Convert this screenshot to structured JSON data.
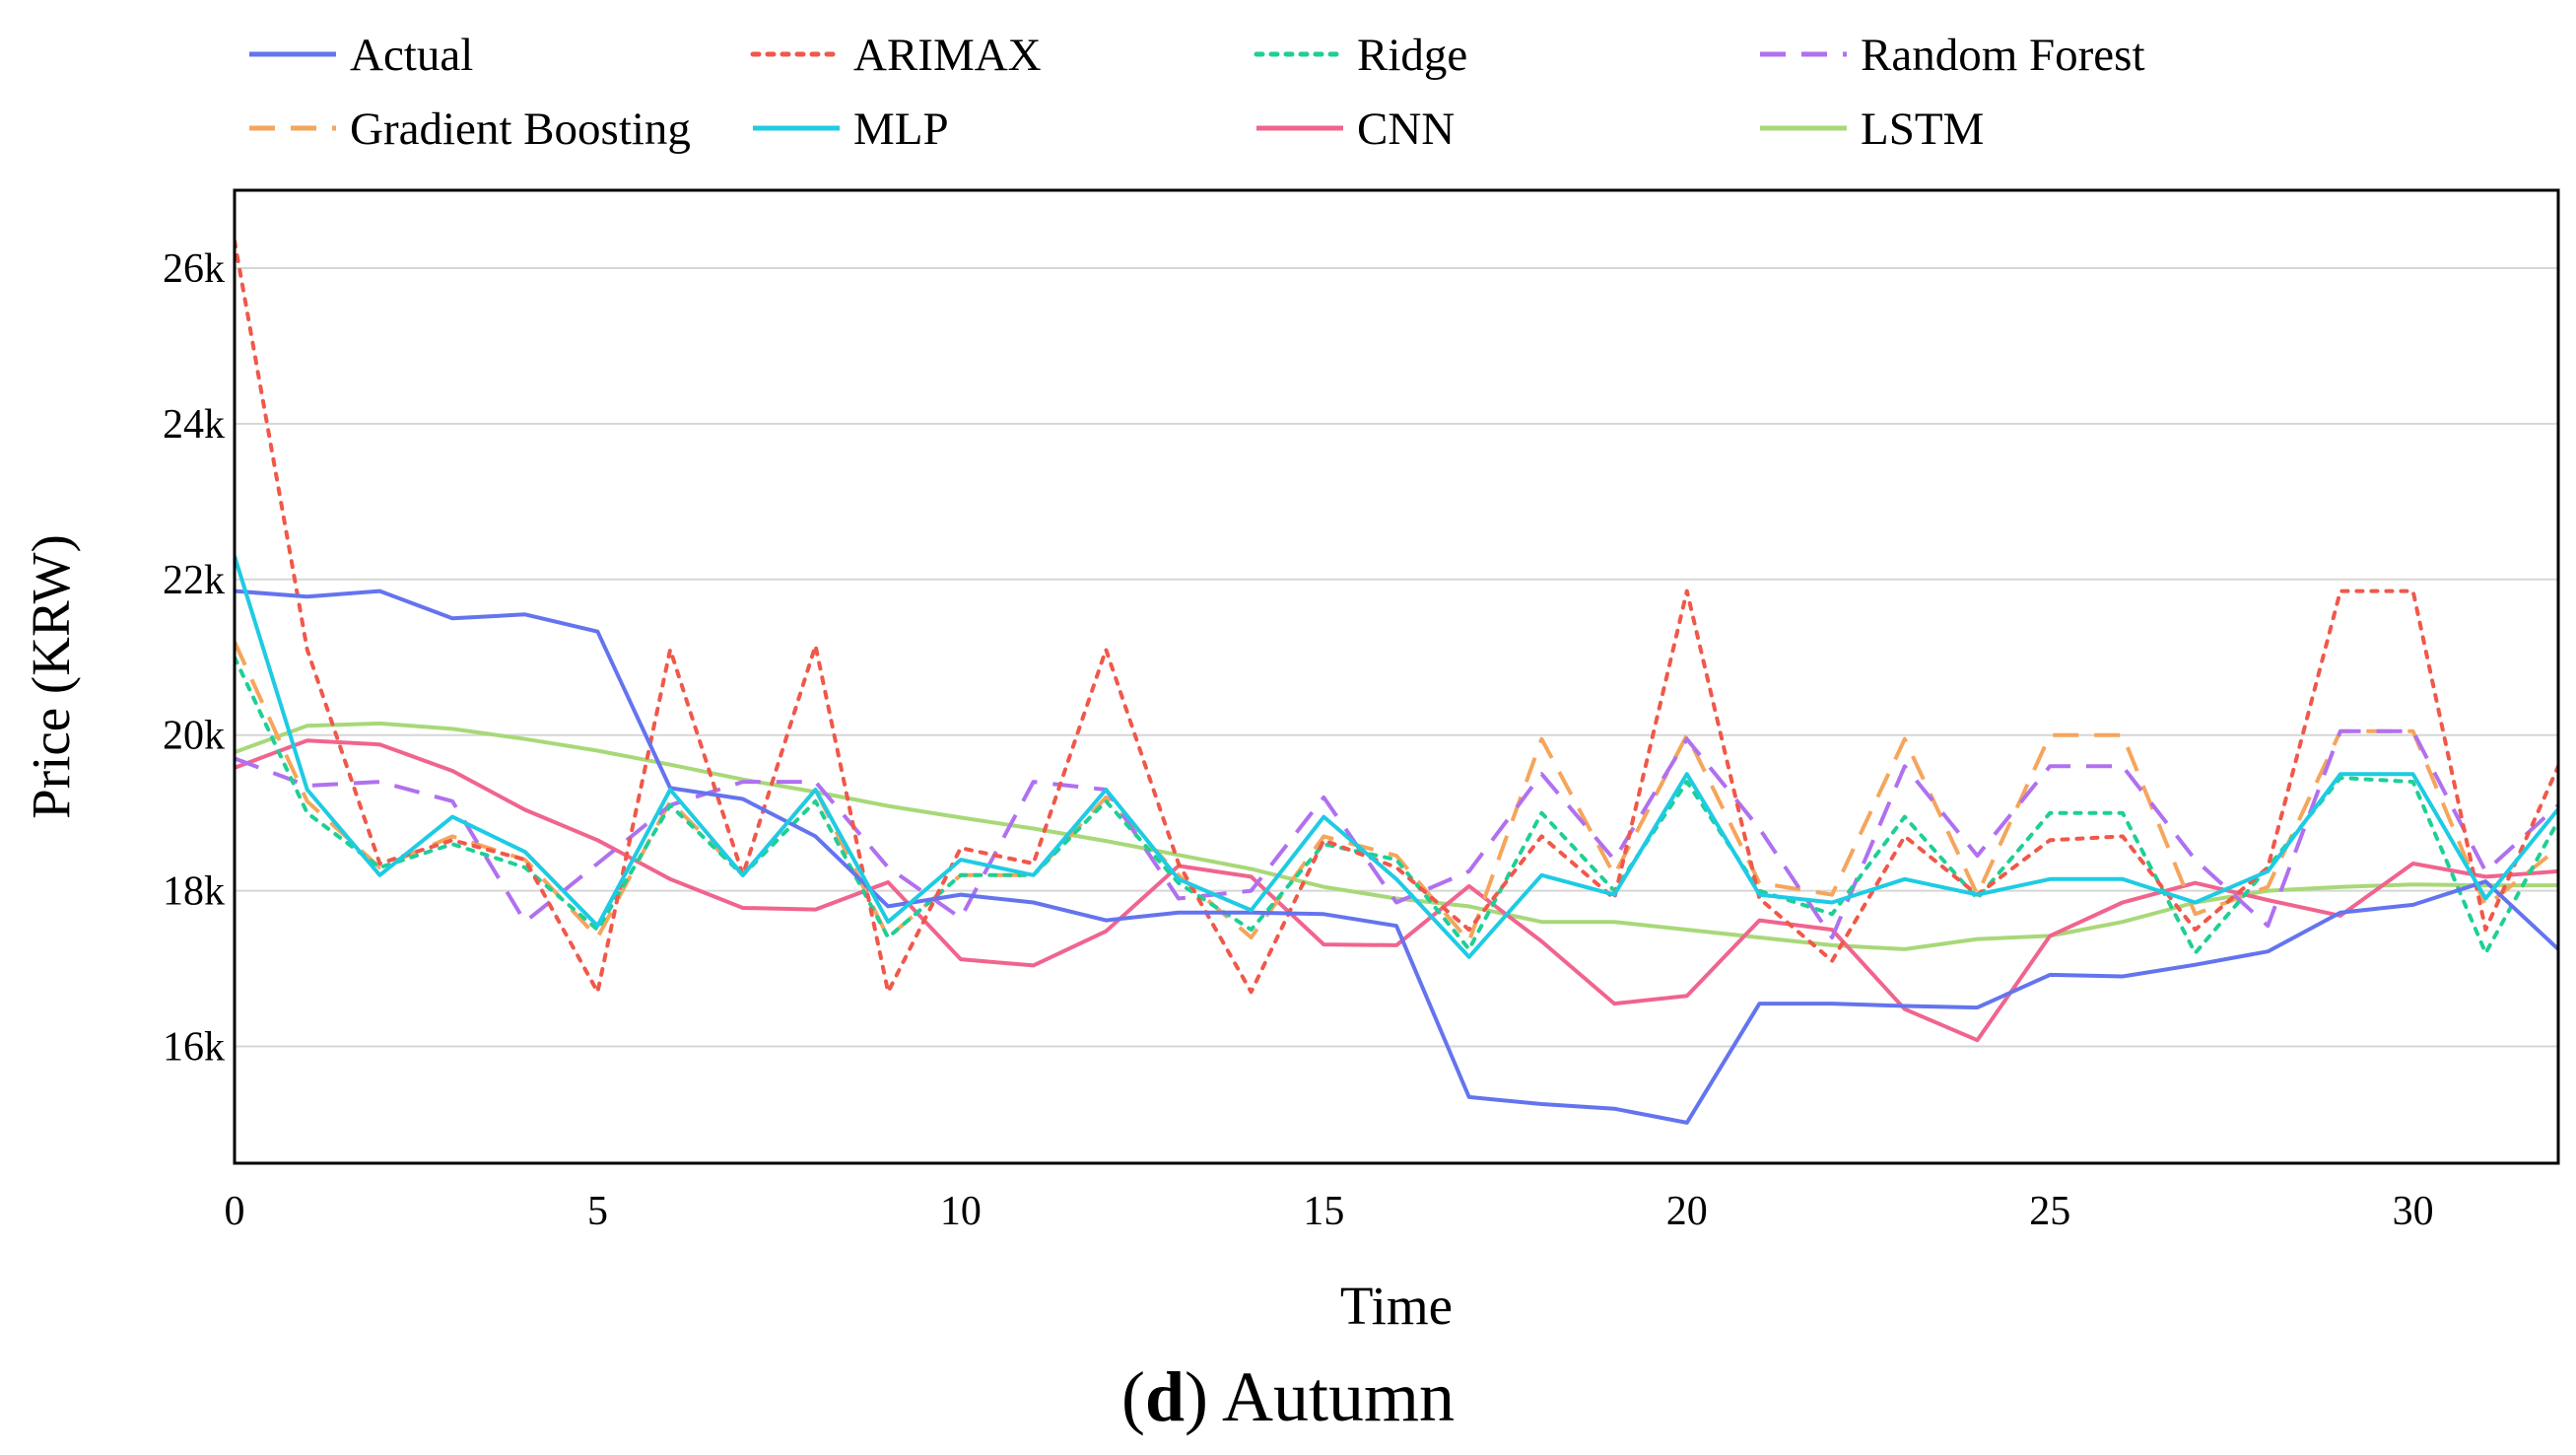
{
  "chart_data": {
    "type": "line",
    "xlabel": "Time",
    "ylabel": "Price (KRW)",
    "xlim": [
      0,
      32
    ],
    "ylim": [
      14500,
      27000
    ],
    "xticks": [
      0,
      5,
      10,
      15,
      20,
      25,
      30
    ],
    "yticks": [
      {
        "value": 16000,
        "label": "16k"
      },
      {
        "value": 18000,
        "label": "18k"
      },
      {
        "value": 20000,
        "label": "20k"
      },
      {
        "value": 22000,
        "label": "22k"
      },
      {
        "value": 24000,
        "label": "24k"
      },
      {
        "value": 26000,
        "label": "26k"
      }
    ],
    "grid": "horizontal",
    "legend_position": "top",
    "x": [
      0,
      1,
      2,
      3,
      4,
      5,
      6,
      7,
      8,
      9,
      10,
      11,
      12,
      13,
      14,
      15,
      16,
      17,
      18,
      19,
      20,
      21,
      22,
      23,
      24,
      25,
      26,
      27,
      28,
      29,
      30,
      31,
      32
    ],
    "series": [
      {
        "name": "Actual",
        "color": "#6474ef",
        "style": "solid",
        "values": [
          21850,
          21780,
          21850,
          21500,
          21550,
          21330,
          19320,
          19180,
          18700,
          17800,
          17950,
          17850,
          17620,
          17720,
          17720,
          17700,
          17550,
          15350,
          15260,
          15200,
          15020,
          16550,
          16550,
          16520,
          16500,
          16920,
          16900,
          17050,
          17220,
          17720,
          17820,
          18120,
          17250
        ]
      },
      {
        "name": "ARIMAX",
        "color": "#f0584a",
        "style": "dotted",
        "values": [
          26350,
          21100,
          18350,
          18650,
          18400,
          16700,
          21100,
          18200,
          21150,
          16700,
          18550,
          18350,
          21100,
          18350,
          16700,
          18650,
          18300,
          17500,
          18700,
          17900,
          21850,
          17900,
          17100,
          18700,
          17950,
          18650,
          18700,
          17500,
          18300,
          21850,
          21850,
          17500,
          19600
        ]
      },
      {
        "name": "Ridge",
        "color": "#1fcf95",
        "style": "dotted",
        "values": [
          21000,
          19000,
          18300,
          18600,
          18300,
          17500,
          19100,
          18200,
          19150,
          17400,
          18200,
          18200,
          19150,
          18100,
          17500,
          18600,
          18400,
          17250,
          19000,
          18000,
          19400,
          18000,
          17700,
          18950,
          17900,
          19000,
          19000,
          17200,
          18300,
          19450,
          19400,
          17200,
          18900
        ]
      },
      {
        "name": "Random Forest",
        "color": "#b070f0",
        "style": "dashed",
        "values": [
          19700,
          19350,
          19400,
          19150,
          17600,
          18350,
          19100,
          19400,
          19400,
          18300,
          17650,
          19400,
          19300,
          17900,
          18000,
          19200,
          17850,
          18250,
          19500,
          18400,
          19950,
          18800,
          17400,
          19600,
          18450,
          19600,
          19600,
          18400,
          17550,
          20050,
          20050,
          18250,
          19100
        ]
      },
      {
        "name": "Gradient Boosting",
        "color": "#f5a55c",
        "style": "dashed",
        "values": [
          21200,
          19150,
          18300,
          18700,
          18400,
          17400,
          19150,
          18200,
          19300,
          17400,
          18200,
          18200,
          19200,
          18200,
          17400,
          18700,
          18450,
          17350,
          19950,
          18200,
          20000,
          18100,
          17950,
          19950,
          17950,
          20000,
          20000,
          17700,
          18050,
          20050,
          20050,
          17800,
          18550
        ]
      },
      {
        "name": "MLP",
        "color": "#1ecbe3",
        "style": "solid",
        "values": [
          22300,
          19300,
          18200,
          18950,
          18500,
          17550,
          19300,
          18200,
          19300,
          17600,
          18400,
          18200,
          19300,
          18150,
          17750,
          18950,
          18150,
          17150,
          18200,
          17950,
          19500,
          17950,
          17850,
          18150,
          17950,
          18150,
          18150,
          17850,
          18250,
          19500,
          19500,
          17900,
          19050
        ]
      },
      {
        "name": "CNN",
        "color": "#f0648e",
        "style": "solid",
        "values": [
          19580,
          19930,
          19880,
          19540,
          19040,
          18650,
          18150,
          17780,
          17760,
          18110,
          17120,
          17040,
          17480,
          18320,
          18180,
          17310,
          17300,
          18060,
          17350,
          16550,
          16650,
          17620,
          17500,
          16480,
          16080,
          17420,
          17850,
          18100,
          17880,
          17680,
          18350,
          18180,
          18250
        ]
      },
      {
        "name": "LSTM",
        "color": "#a8d878",
        "style": "solid",
        "values": [
          19780,
          20120,
          20150,
          20080,
          19950,
          19800,
          19620,
          19430,
          19270,
          19090,
          18940,
          18800,
          18640,
          18460,
          18280,
          18050,
          17900,
          17800,
          17600,
          17600,
          17500,
          17400,
          17300,
          17250,
          17380,
          17420,
          17600,
          17850,
          18000,
          18050,
          18080,
          18070,
          18070
        ]
      }
    ]
  },
  "caption": {
    "letter": "d",
    "text": "Autumn"
  }
}
